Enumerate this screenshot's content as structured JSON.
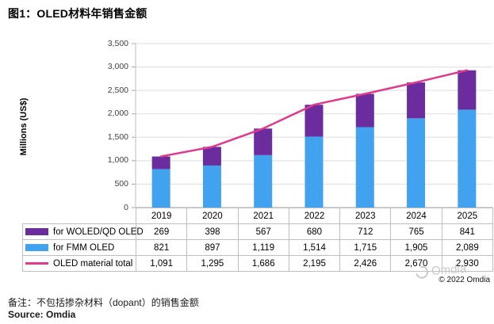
{
  "figure": {
    "title": "图1：OLED材料年销售金额",
    "note": "备注：不包括掺杂材料（dopant）的销售金额",
    "source": "Source: Omdia",
    "watermark_text": "Omdia",
    "copyright": "© 2022 Omdia"
  },
  "chart_data": {
    "type": "bar",
    "subtype": "stacked-bars-with-total-line",
    "title": "",
    "xlabel": "",
    "ylabel": "Millions (US$)",
    "ylim": [
      0,
      3500
    ],
    "ytick_step": 500,
    "grid": true,
    "legend_position": "table-rows-left",
    "table_below": true,
    "categories": [
      "2019",
      "2020",
      "2021",
      "2022",
      "2023",
      "2024",
      "2025"
    ],
    "stack_order": [
      1,
      0
    ],
    "series": [
      {
        "name": "for WOLED/QD OLED",
        "type": "bar",
        "color": "#6B2D9E",
        "values": [
          269,
          398,
          567,
          680,
          712,
          765,
          841
        ]
      },
      {
        "name": "for FMM OLED",
        "type": "bar",
        "color": "#41A3EF",
        "values": [
          821,
          897,
          1119,
          1514,
          1715,
          1905,
          2089
        ]
      },
      {
        "name": "OLED material total",
        "type": "line",
        "color": "#DF3A8C",
        "values": [
          1091,
          1295,
          1686,
          2195,
          2426,
          2670,
          2930
        ]
      }
    ]
  },
  "colors": {
    "grid": "#DDDDDD",
    "axis": "#A6A6A6",
    "table_border": "#BFBFBF",
    "watermark": "#C9C9C9",
    "background": "#FFFFFF"
  }
}
